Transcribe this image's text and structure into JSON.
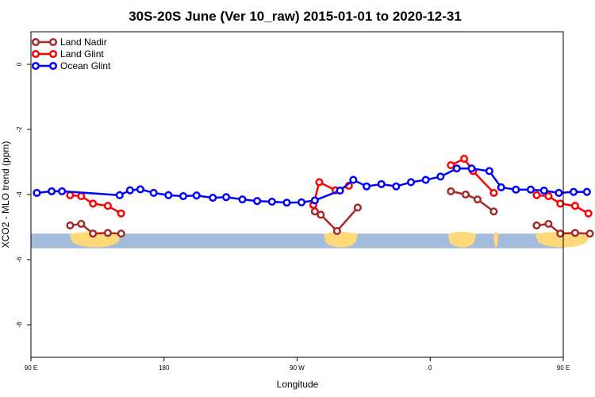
{
  "chart_data": {
    "type": "line",
    "title": "30S-20S June (Ver 10_raw)   2015-01-01 to 2020-12-31",
    "xlabel": "Longitude",
    "ylabel": "XCO2 - MLO trend (ppm)",
    "xlim": [
      90,
      450
    ],
    "ylim": [
      -9,
      1
    ],
    "x_ticks": [
      {
        "value": 90,
        "label": "90 E"
      },
      {
        "value": 180,
        "label": "180"
      },
      {
        "value": 270,
        "label": "90 W"
      },
      {
        "value": 360,
        "label": "0"
      },
      {
        "value": 450,
        "label": "90 E"
      },
      {
        "value": 540,
        "label": "180"
      }
    ],
    "y_ticks": [
      {
        "value": 0,
        "label": "0"
      },
      {
        "value": -2,
        "label": "-2"
      },
      {
        "value": -4,
        "label": "-4"
      },
      {
        "value": -6,
        "label": "-6"
      },
      {
        "value": -8,
        "label": "-8"
      }
    ],
    "grid": false,
    "legend_position": "top-left",
    "series": [
      {
        "name": "Land Nadir",
        "color": "#a52a2a",
        "segments": [
          [
            [
              116.5,
              -4.95
            ],
            [
              124,
              -4.9
            ],
            [
              132,
              -5.2
            ],
            [
              142,
              -5.18
            ],
            [
              151,
              -5.2
            ]
          ],
          [
            [
              282,
              -4.52
            ],
            [
              286,
              -4.62
            ],
            [
              297,
              -5.12
            ],
            [
              311,
              -4.4
            ]
          ],
          [
            [
              374,
              -3.9
            ],
            [
              384,
              -4.0
            ],
            [
              392,
              -4.15
            ],
            [
              403,
              -4.52
            ]
          ],
          [
            [
              432,
              -4.95
            ],
            [
              440,
              -4.9
            ],
            [
              448,
              -5.2
            ],
            [
              458,
              -5.18
            ],
            [
              468,
              -5.2
            ]
          ]
        ]
      },
      {
        "name": "Land Glint",
        "color": "#ff0000",
        "segments": [
          [
            [
              116.5,
              -4.02
            ],
            [
              124,
              -4.05
            ],
            [
              132,
              -4.28
            ],
            [
              142,
              -4.35
            ],
            [
              151,
              -4.58
            ]
          ],
          [
            [
              281,
              -4.32
            ],
            [
              285,
              -3.62
            ],
            [
              296,
              -3.87
            ],
            [
              305,
              -3.73
            ]
          ],
          [
            [
              374,
              -3.1
            ],
            [
              383,
              -2.9
            ],
            [
              389,
              -3.28
            ],
            [
              403,
              -3.95
            ]
          ],
          [
            [
              432,
              -4.02
            ],
            [
              440,
              -4.05
            ],
            [
              448,
              -4.28
            ],
            [
              458,
              -4.35
            ],
            [
              467,
              -4.58
            ]
          ]
        ]
      },
      {
        "name": "Ocean Glint",
        "color": "#0000ff",
        "segments": [
          [
            [
              94,
              -3.95
            ],
            [
              104,
              -3.9
            ],
            [
              111,
              -3.9
            ],
            [
              150,
              -4.02
            ],
            [
              157,
              -3.87
            ],
            [
              164,
              -3.84
            ],
            [
              173,
              -3.95
            ],
            [
              183,
              -4.02
            ],
            [
              193,
              -4.05
            ],
            [
              202,
              -4.03
            ],
            [
              213,
              -4.1
            ],
            [
              222,
              -4.08
            ],
            [
              233,
              -4.15
            ],
            [
              243,
              -4.2
            ],
            [
              253,
              -4.22
            ],
            [
              263,
              -4.25
            ],
            [
              273,
              -4.24
            ],
            [
              282,
              -4.18
            ],
            [
              299,
              -3.88
            ],
            [
              308,
              -3.55
            ],
            [
              317,
              -3.75
            ],
            [
              327,
              -3.68
            ],
            [
              337,
              -3.75
            ],
            [
              347,
              -3.62
            ],
            [
              357,
              -3.55
            ],
            [
              367,
              -3.45
            ],
            [
              378,
              -3.2
            ],
            [
              388,
              -3.2
            ],
            [
              400,
              -3.28
            ],
            [
              408,
              -3.78
            ],
            [
              418,
              -3.85
            ],
            [
              428,
              -3.85
            ],
            [
              437,
              -3.88
            ],
            [
              447,
              -3.95
            ],
            [
              457,
              -3.92
            ],
            [
              466,
              -3.92
            ]
          ]
        ]
      }
    ]
  },
  "legend": [
    {
      "label": "Land Nadir",
      "color": "#a52a2a"
    },
    {
      "label": "Land Glint",
      "color": "#ff0000"
    },
    {
      "label": "Ocean Glint",
      "color": "#0000ff"
    }
  ],
  "map_strip": {
    "ocean_color": "#a4bcdc",
    "land_color": "#ffd878",
    "y_range": [
      -5.65,
      -5.2
    ],
    "land_blobs": [
      {
        "name": "australia-1",
        "x": [
          116,
          151
        ]
      },
      {
        "name": "south-america",
        "x": [
          288,
          311
        ]
      },
      {
        "name": "africa",
        "x": [
          372,
          391
        ]
      },
      {
        "name": "madagascar",
        "x": [
          403,
          406
        ]
      },
      {
        "name": "australia-2",
        "x": [
          431,
          468
        ]
      }
    ]
  }
}
